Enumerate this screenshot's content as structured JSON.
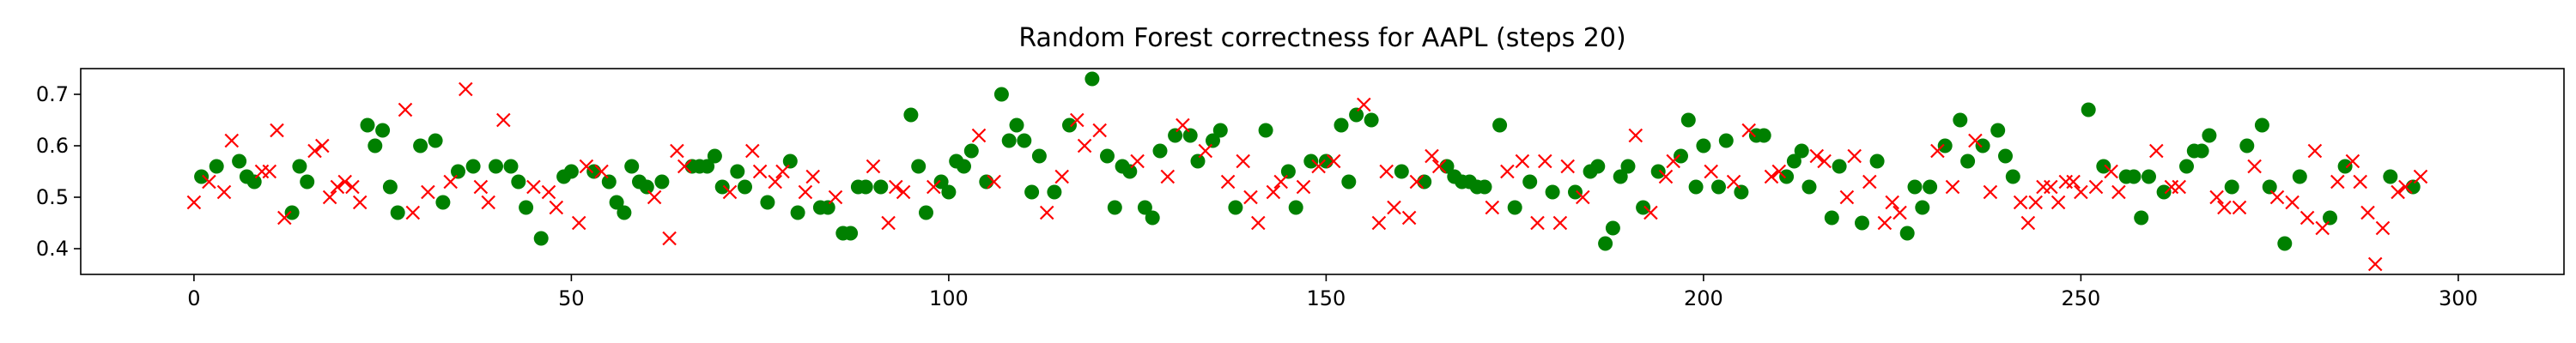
{
  "chart_data": {
    "type": "scatter",
    "title": "Random Forest correctness for AAPL (steps 20)",
    "xlabel": "",
    "ylabel": "",
    "xlim": [
      -15,
      314
    ],
    "ylim": [
      0.35,
      0.75
    ],
    "x_ticks": [
      0,
      50,
      100,
      150,
      200,
      250,
      300
    ],
    "y_ticks": [
      0.4,
      0.5,
      0.6,
      0.7
    ],
    "x_tick_labels": [
      "0",
      "50",
      "100",
      "150",
      "200",
      "250",
      "300"
    ],
    "y_tick_labels": [
      "0.4",
      "0.5",
      "0.6",
      "0.7"
    ],
    "grid": false,
    "legend": "none",
    "series": [
      {
        "marker": "circle",
        "color": "#008000",
        "points": [
          [
            1,
            0.54
          ],
          [
            3,
            0.56
          ],
          [
            6,
            0.57
          ],
          [
            7,
            0.54
          ],
          [
            8,
            0.53
          ],
          [
            13,
            0.47
          ],
          [
            14,
            0.56
          ],
          [
            15,
            0.53
          ],
          [
            23,
            0.64
          ],
          [
            24,
            0.6
          ],
          [
            25,
            0.63
          ],
          [
            26,
            0.52
          ],
          [
            27,
            0.47
          ],
          [
            30,
            0.6
          ],
          [
            32,
            0.61
          ],
          [
            33,
            0.49
          ],
          [
            35,
            0.55
          ],
          [
            37,
            0.56
          ],
          [
            40,
            0.56
          ],
          [
            42,
            0.56
          ],
          [
            43,
            0.53
          ],
          [
            44,
            0.48
          ],
          [
            46,
            0.42
          ],
          [
            49,
            0.54
          ],
          [
            50,
            0.55
          ],
          [
            53,
            0.55
          ],
          [
            55,
            0.53
          ],
          [
            56,
            0.49
          ],
          [
            57,
            0.47
          ],
          [
            58,
            0.56
          ],
          [
            59,
            0.53
          ],
          [
            60,
            0.52
          ],
          [
            62,
            0.53
          ],
          [
            66,
            0.56
          ],
          [
            67,
            0.56
          ],
          [
            68,
            0.56
          ],
          [
            69,
            0.58
          ],
          [
            70,
            0.52
          ],
          [
            72,
            0.55
          ],
          [
            73,
            0.52
          ],
          [
            76,
            0.49
          ],
          [
            79,
            0.57
          ],
          [
            80,
            0.47
          ],
          [
            83,
            0.48
          ],
          [
            84,
            0.48
          ],
          [
            86,
            0.43
          ],
          [
            87,
            0.43
          ],
          [
            88,
            0.52
          ],
          [
            89,
            0.52
          ],
          [
            91,
            0.52
          ],
          [
            95,
            0.66
          ],
          [
            96,
            0.56
          ],
          [
            97,
            0.47
          ],
          [
            99,
            0.53
          ],
          [
            100,
            0.51
          ],
          [
            101,
            0.57
          ],
          [
            102,
            0.56
          ],
          [
            103,
            0.59
          ],
          [
            105,
            0.53
          ],
          [
            107,
            0.7
          ],
          [
            108,
            0.61
          ],
          [
            109,
            0.64
          ],
          [
            110,
            0.61
          ],
          [
            111,
            0.51
          ],
          [
            112,
            0.58
          ],
          [
            114,
            0.51
          ],
          [
            116,
            0.64
          ],
          [
            119,
            0.73
          ],
          [
            121,
            0.58
          ],
          [
            122,
            0.48
          ],
          [
            123,
            0.56
          ],
          [
            124,
            0.55
          ],
          [
            126,
            0.48
          ],
          [
            127,
            0.46
          ],
          [
            128,
            0.59
          ],
          [
            130,
            0.62
          ],
          [
            132,
            0.62
          ],
          [
            133,
            0.57
          ],
          [
            135,
            0.61
          ],
          [
            136,
            0.63
          ],
          [
            138,
            0.48
          ],
          [
            142,
            0.63
          ],
          [
            145,
            0.55
          ],
          [
            146,
            0.48
          ],
          [
            148,
            0.57
          ],
          [
            150,
            0.57
          ],
          [
            152,
            0.64
          ],
          [
            153,
            0.53
          ],
          [
            154,
            0.66
          ],
          [
            156,
            0.65
          ],
          [
            160,
            0.55
          ],
          [
            163,
            0.53
          ],
          [
            166,
            0.56
          ],
          [
            167,
            0.54
          ],
          [
            168,
            0.53
          ],
          [
            169,
            0.53
          ],
          [
            170,
            0.52
          ],
          [
            171,
            0.52
          ],
          [
            173,
            0.64
          ],
          [
            175,
            0.48
          ],
          [
            177,
            0.53
          ],
          [
            180,
            0.51
          ],
          [
            183,
            0.51
          ],
          [
            185,
            0.55
          ],
          [
            186,
            0.56
          ],
          [
            187,
            0.41
          ],
          [
            188,
            0.44
          ],
          [
            189,
            0.54
          ],
          [
            190,
            0.56
          ],
          [
            192,
            0.48
          ],
          [
            194,
            0.55
          ],
          [
            197,
            0.58
          ],
          [
            198,
            0.65
          ],
          [
            199,
            0.52
          ],
          [
            200,
            0.6
          ],
          [
            202,
            0.52
          ],
          [
            203,
            0.61
          ],
          [
            205,
            0.51
          ],
          [
            207,
            0.62
          ],
          [
            208,
            0.62
          ],
          [
            211,
            0.54
          ],
          [
            212,
            0.57
          ],
          [
            213,
            0.59
          ],
          [
            214,
            0.52
          ],
          [
            217,
            0.46
          ],
          [
            218,
            0.56
          ],
          [
            221,
            0.45
          ],
          [
            223,
            0.57
          ],
          [
            227,
            0.43
          ],
          [
            228,
            0.52
          ],
          [
            229,
            0.48
          ],
          [
            230,
            0.52
          ],
          [
            232,
            0.6
          ],
          [
            234,
            0.65
          ],
          [
            235,
            0.57
          ],
          [
            237,
            0.6
          ],
          [
            239,
            0.63
          ],
          [
            240,
            0.58
          ],
          [
            241,
            0.54
          ],
          [
            251,
            0.67
          ],
          [
            253,
            0.56
          ],
          [
            256,
            0.54
          ],
          [
            257,
            0.54
          ],
          [
            258,
            0.46
          ],
          [
            259,
            0.54
          ],
          [
            261,
            0.51
          ],
          [
            264,
            0.56
          ],
          [
            265,
            0.59
          ],
          [
            266,
            0.59
          ],
          [
            267,
            0.62
          ],
          [
            270,
            0.52
          ],
          [
            272,
            0.6
          ],
          [
            274,
            0.64
          ],
          [
            275,
            0.52
          ],
          [
            277,
            0.41
          ],
          [
            279,
            0.54
          ],
          [
            283,
            0.46
          ],
          [
            285,
            0.56
          ],
          [
            291,
            0.54
          ],
          [
            294,
            0.52
          ]
        ]
      },
      {
        "marker": "x",
        "color": "#ff0000",
        "points": [
          [
            0,
            0.49
          ],
          [
            2,
            0.53
          ],
          [
            4,
            0.51
          ],
          [
            5,
            0.61
          ],
          [
            9,
            0.55
          ],
          [
            10,
            0.55
          ],
          [
            11,
            0.63
          ],
          [
            12,
            0.46
          ],
          [
            16,
            0.59
          ],
          [
            17,
            0.6
          ],
          [
            18,
            0.5
          ],
          [
            19,
            0.52
          ],
          [
            20,
            0.53
          ],
          [
            21,
            0.52
          ],
          [
            22,
            0.49
          ],
          [
            28,
            0.67
          ],
          [
            29,
            0.47
          ],
          [
            31,
            0.51
          ],
          [
            34,
            0.53
          ],
          [
            36,
            0.71
          ],
          [
            38,
            0.52
          ],
          [
            39,
            0.49
          ],
          [
            41,
            0.65
          ],
          [
            45,
            0.52
          ],
          [
            47,
            0.51
          ],
          [
            48,
            0.48
          ],
          [
            51,
            0.45
          ],
          [
            52,
            0.56
          ],
          [
            54,
            0.55
          ],
          [
            61,
            0.5
          ],
          [
            63,
            0.42
          ],
          [
            64,
            0.59
          ],
          [
            65,
            0.56
          ],
          [
            71,
            0.51
          ],
          [
            74,
            0.59
          ],
          [
            75,
            0.55
          ],
          [
            77,
            0.53
          ],
          [
            78,
            0.55
          ],
          [
            81,
            0.51
          ],
          [
            82,
            0.54
          ],
          [
            85,
            0.5
          ],
          [
            90,
            0.56
          ],
          [
            92,
            0.45
          ],
          [
            93,
            0.52
          ],
          [
            94,
            0.51
          ],
          [
            98,
            0.52
          ],
          [
            104,
            0.62
          ],
          [
            106,
            0.53
          ],
          [
            113,
            0.47
          ],
          [
            115,
            0.54
          ],
          [
            117,
            0.65
          ],
          [
            118,
            0.6
          ],
          [
            120,
            0.63
          ],
          [
            125,
            0.57
          ],
          [
            129,
            0.54
          ],
          [
            131,
            0.64
          ],
          [
            134,
            0.59
          ],
          [
            137,
            0.53
          ],
          [
            139,
            0.57
          ],
          [
            140,
            0.5
          ],
          [
            141,
            0.45
          ],
          [
            143,
            0.51
          ],
          [
            144,
            0.53
          ],
          [
            147,
            0.52
          ],
          [
            149,
            0.56
          ],
          [
            151,
            0.57
          ],
          [
            155,
            0.68
          ],
          [
            157,
            0.45
          ],
          [
            158,
            0.55
          ],
          [
            159,
            0.48
          ],
          [
            161,
            0.46
          ],
          [
            162,
            0.53
          ],
          [
            164,
            0.58
          ],
          [
            165,
            0.56
          ],
          [
            172,
            0.48
          ],
          [
            174,
            0.55
          ],
          [
            176,
            0.57
          ],
          [
            178,
            0.45
          ],
          [
            179,
            0.57
          ],
          [
            181,
            0.45
          ],
          [
            182,
            0.56
          ],
          [
            184,
            0.5
          ],
          [
            191,
            0.62
          ],
          [
            193,
            0.47
          ],
          [
            195,
            0.54
          ],
          [
            196,
            0.57
          ],
          [
            201,
            0.55
          ],
          [
            204,
            0.53
          ],
          [
            206,
            0.63
          ],
          [
            209,
            0.54
          ],
          [
            210,
            0.55
          ],
          [
            215,
            0.58
          ],
          [
            216,
            0.57
          ],
          [
            219,
            0.5
          ],
          [
            220,
            0.58
          ],
          [
            222,
            0.53
          ],
          [
            224,
            0.45
          ],
          [
            225,
            0.49
          ],
          [
            226,
            0.47
          ],
          [
            231,
            0.59
          ],
          [
            233,
            0.52
          ],
          [
            236,
            0.61
          ],
          [
            238,
            0.51
          ],
          [
            242,
            0.49
          ],
          [
            243,
            0.45
          ],
          [
            244,
            0.49
          ],
          [
            245,
            0.52
          ],
          [
            246,
            0.52
          ],
          [
            247,
            0.49
          ],
          [
            248,
            0.53
          ],
          [
            249,
            0.53
          ],
          [
            250,
            0.51
          ],
          [
            252,
            0.52
          ],
          [
            254,
            0.55
          ],
          [
            255,
            0.51
          ],
          [
            260,
            0.59
          ],
          [
            262,
            0.52
          ],
          [
            263,
            0.52
          ],
          [
            268,
            0.5
          ],
          [
            269,
            0.48
          ],
          [
            271,
            0.48
          ],
          [
            273,
            0.56
          ],
          [
            276,
            0.5
          ],
          [
            278,
            0.49
          ],
          [
            280,
            0.46
          ],
          [
            281,
            0.59
          ],
          [
            282,
            0.44
          ],
          [
            284,
            0.53
          ],
          [
            286,
            0.57
          ],
          [
            287,
            0.53
          ],
          [
            288,
            0.47
          ],
          [
            289,
            0.37
          ],
          [
            290,
            0.44
          ],
          [
            292,
            0.51
          ],
          [
            293,
            0.52
          ],
          [
            295,
            0.54
          ]
        ]
      }
    ]
  }
}
